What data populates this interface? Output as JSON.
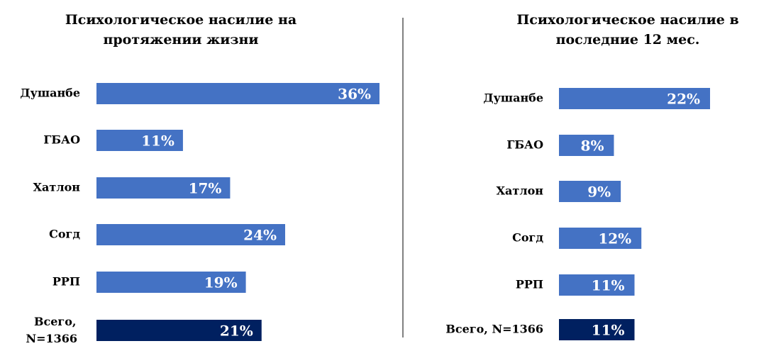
{
  "chart_data": [
    {
      "type": "bar",
      "orientation": "horizontal",
      "title": "Психологическое насилие на протяжении жизни",
      "categories": [
        "Душанбе",
        "ГБАО",
        "Хатлон",
        "Согд",
        "РРП",
        "Всего, N=1366"
      ],
      "values": [
        36,
        11,
        17,
        24,
        19,
        21
      ],
      "value_labels": [
        "36%",
        "11%",
        "17%",
        "24%",
        "19%",
        "21%"
      ],
      "colors": [
        "#4472c4",
        "#4472c4",
        "#4472c4",
        "#4472c4",
        "#4472c4",
        "#002060"
      ],
      "xlim": [
        0,
        36
      ]
    },
    {
      "type": "bar",
      "orientation": "horizontal",
      "title": "Психологическое насилие в последние 12 мес.",
      "categories": [
        "Душанбе",
        "ГБАО",
        "Хатлон",
        "Согд",
        "РРП",
        "Всего, N=1366"
      ],
      "values": [
        22,
        8,
        9,
        12,
        11,
        11
      ],
      "value_labels": [
        "22%",
        "8%",
        "9%",
        "12%",
        "11%",
        "11%"
      ],
      "colors": [
        "#4472c4",
        "#4472c4",
        "#4472c4",
        "#4472c4",
        "#4472c4",
        "#002060"
      ],
      "xlim": [
        0,
        22
      ]
    }
  ]
}
